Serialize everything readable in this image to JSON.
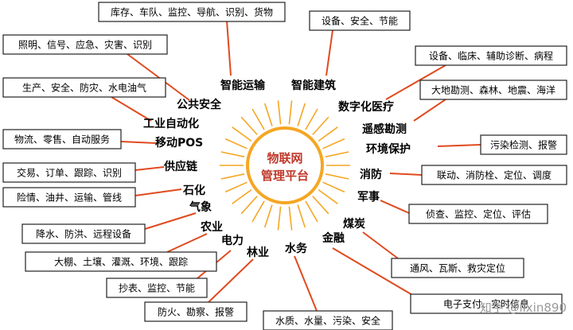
{
  "center": {
    "line1": "物联网",
    "line2": "管理平台"
  },
  "colors": {
    "hub": "#f5a623",
    "hub_fill": "#ffffff",
    "line": "#e04a1f",
    "box_border": "#222222",
    "center_text": "#c0392b"
  },
  "sectors": [
    {
      "label": "智能运输",
      "box": "库存、车队、监控、导航、识别、货物"
    },
    {
      "label": "智能建筑",
      "box": "设备、安全、节能"
    },
    {
      "label": "数字化医疗",
      "box": "设备、临床、辅助诊断、病程"
    },
    {
      "label": "遥感勘测",
      "box": "大地勘测、森林、地震、海洋"
    },
    {
      "label": "环境保护",
      "box": "污染检测、报警"
    },
    {
      "label": "消防",
      "box": "联动、消防栓、定位、调度"
    },
    {
      "label": "军事",
      "box": "侦查、监控、定位、评估"
    },
    {
      "label": "煤炭",
      "box": "通风、瓦斯、救灾定位"
    },
    {
      "label": "金融",
      "box": "电子支付、实时信息"
    },
    {
      "label": "水务",
      "box": "水质、水量、污染、安全"
    },
    {
      "label": "林业",
      "box": "防火、勘察、报警"
    },
    {
      "label": "电力",
      "box": "抄表、监控、节能"
    },
    {
      "label": "农业",
      "box": "大棚、土壤、灌溉、环境、跟踪"
    },
    {
      "label": "气象",
      "box": "降水、防洪、远程设备"
    },
    {
      "label": "石化",
      "box": "险情、油井、运输、管线"
    },
    {
      "label": "供应链",
      "box": "交易、订单、跟踪、识别"
    },
    {
      "label": "移动POS",
      "box": "物流、零售、自动服务"
    },
    {
      "label": "工业自动化",
      "box": "生产、安全、防灾、水电油气"
    },
    {
      "label": "公共安全",
      "box": "照明、信号、应急、灾害、识别"
    }
  ],
  "watermark": "知乎 @lixin890"
}
